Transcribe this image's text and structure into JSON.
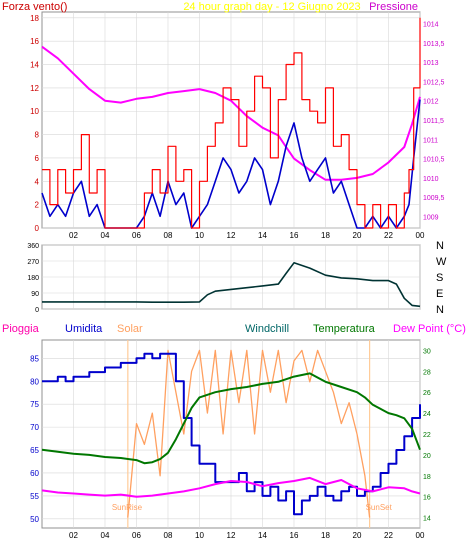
{
  "chart_data": [
    {
      "type": "line",
      "title": "24 hour graph day - 12 Giugno 2023",
      "left_label": "Forza vento()",
      "right_label": "Pressione",
      "colors": {
        "background": "#ffffff",
        "grid": "#d8d8d8",
        "title": "#ffff00",
        "wind": "#ff0000",
        "gust": "#0000cc",
        "pressure": "#ff00ff",
        "left_label": "#cc0000",
        "right_label": "#cc00cc",
        "axis_text": "#cc0000",
        "right_axis_text": "#cc00cc"
      },
      "x_ticks": [
        "02",
        "04",
        "06",
        "08",
        "10",
        "12",
        "14",
        "16",
        "18",
        "20",
        "22",
        "00"
      ],
      "xlim": [
        0,
        24
      ],
      "y_left": {
        "ylim": [
          0,
          18.5
        ],
        "ticks": [
          "0",
          "2",
          "4",
          "6",
          "8",
          "10",
          "12",
          "14",
          "16",
          "18"
        ]
      },
      "y_right": {
        "ylim": [
          1008.7,
          1014.3
        ],
        "ticks": [
          "1009",
          "1009,5",
          "1010",
          "1010,5",
          "1011",
          "1011,5",
          "1012",
          "1012,5",
          "1013",
          "1013,5",
          "1014"
        ]
      },
      "series": [
        {
          "role": "pressure",
          "axis": "right",
          "x": [
            0,
            1,
            2,
            3,
            4,
            5,
            6,
            7,
            8,
            9,
            10,
            11,
            12,
            13,
            14,
            15,
            15.5,
            16,
            17,
            18,
            19,
            20,
            21,
            22,
            23,
            23.5,
            24
          ],
          "y": [
            1013.4,
            1013.1,
            1012.7,
            1012.3,
            1012.0,
            1011.95,
            1012.05,
            1012.1,
            1012.2,
            1012.25,
            1012.3,
            1012.2,
            1012.0,
            1011.6,
            1011.3,
            1011.1,
            1010.8,
            1010.5,
            1010.2,
            1009.95,
            1009.95,
            1010.0,
            1010.1,
            1010.4,
            1010.8,
            1011.4,
            1012.1
          ]
        },
        {
          "role": "gust",
          "axis": "left",
          "x": [
            0,
            0.5,
            1,
            1.5,
            2,
            2.5,
            3,
            3.5,
            4,
            5,
            6,
            6.5,
            7,
            7.5,
            8,
            8.5,
            9,
            9.5,
            10,
            10.5,
            11,
            11.5,
            12,
            12.5,
            13,
            13.5,
            14,
            14.5,
            15,
            15.5,
            16,
            16.5,
            17,
            17.5,
            18,
            18.5,
            19,
            19.5,
            20,
            20.5,
            21,
            21.5,
            22,
            22.5,
            23,
            23.3,
            23.6,
            24
          ],
          "y": [
            3,
            1,
            2,
            1,
            3,
            4,
            1,
            2,
            0,
            0,
            0,
            1,
            3,
            1,
            4,
            2,
            3,
            0,
            1,
            2,
            4,
            6,
            5,
            3,
            4,
            6,
            5,
            2,
            4,
            7,
            9,
            6,
            4,
            5,
            6,
            3,
            4,
            2,
            0,
            0,
            1,
            0,
            1,
            0,
            1,
            2,
            6,
            11
          ]
        },
        {
          "role": "wind",
          "axis": "left",
          "x": [
            0,
            0.5,
            1,
            1.5,
            2,
            2.5,
            3,
            3.5,
            4,
            5,
            6,
            6.5,
            7,
            7.5,
            8,
            8.5,
            9,
            9.5,
            10,
            10.5,
            11,
            11.5,
            12,
            12.5,
            13,
            13.5,
            14,
            14.5,
            15,
            15.5,
            16,
            16.5,
            17,
            17.5,
            18,
            18.5,
            19,
            19.5,
            20,
            20.5,
            21,
            21.5,
            22,
            22.5,
            23,
            23.3,
            23.6,
            24
          ],
          "y": [
            5,
            2,
            5,
            3,
            5,
            8,
            3,
            5,
            0,
            0,
            0,
            3,
            5,
            3,
            7,
            4,
            5,
            0,
            4,
            7,
            9,
            12,
            11,
            7,
            10,
            13,
            12,
            6,
            11,
            14,
            15,
            11,
            10,
            9,
            12,
            7,
            8,
            5,
            2,
            0,
            2,
            0,
            2,
            0,
            3,
            5,
            12,
            18
          ]
        }
      ]
    },
    {
      "type": "line",
      "title": "",
      "colors": {
        "line": "#003333",
        "grid": "#d8d8d8",
        "axis_text": "#000000"
      },
      "xlim": [
        0,
        24
      ],
      "ylim": [
        0,
        360
      ],
      "y_ticks": [
        "0",
        "90",
        "180",
        "270",
        "360"
      ],
      "right_labels": [
        "N",
        "W",
        "S",
        "E",
        "N"
      ],
      "series": [
        {
          "role": "direction",
          "x": [
            0,
            1,
            2,
            3,
            4,
            5,
            6,
            7,
            8,
            9,
            10,
            10.5,
            11,
            12,
            13,
            14,
            15,
            15.5,
            16,
            17,
            18,
            19,
            20,
            21,
            22,
            22.5,
            23,
            23.5,
            24
          ],
          "y": [
            40,
            40,
            40,
            40,
            40,
            40,
            40,
            38,
            38,
            38,
            40,
            80,
            100,
            110,
            120,
            130,
            140,
            200,
            260,
            230,
            190,
            175,
            170,
            160,
            160,
            140,
            60,
            20,
            15
          ]
        }
      ]
    },
    {
      "type": "line",
      "title": "",
      "labels": [
        "Pioggia",
        "Umidita",
        "Solar",
        "Windchill",
        "Temperatura",
        "Dew Point (°C)"
      ],
      "sunrise_label": "SunRise",
      "sunset_label": "SunSet",
      "colors": {
        "rain": "#ff00aa",
        "humidity": "#0000cc",
        "solar": "#ffa060",
        "windchill": "#006666",
        "temperature": "#007700",
        "dewpoint": "#ff00ff",
        "sun_line": "#ffcc99",
        "grid": "#d8d8d8"
      },
      "x_ticks": [
        "02",
        "04",
        "06",
        "08",
        "10",
        "12",
        "14",
        "16",
        "18",
        "20",
        "22",
        "00"
      ],
      "xlim": [
        0,
        24
      ],
      "y_left": {
        "ylim": [
          48,
          89
        ],
        "ticks": [
          "50",
          "55",
          "60",
          "65",
          "70",
          "75",
          "80",
          "85"
        ]
      },
      "y_right": {
        "ylim": [
          13,
          31
        ],
        "ticks": [
          "14",
          "16",
          "18",
          "20",
          "22",
          "24",
          "26",
          "28",
          "30"
        ]
      },
      "sunrise_x": 5.45,
      "sunset_x": 20.8,
      "series": [
        {
          "role": "solar",
          "axis": "right",
          "x": [
            5.45,
            6,
            6.5,
            7,
            7.5,
            8,
            8.5,
            9,
            9.5,
            10,
            10.5,
            11,
            11.5,
            12,
            12.5,
            13,
            13.5,
            14,
            14.5,
            15,
            15.5,
            16,
            16.5,
            17,
            17.5,
            18,
            18.5,
            19,
            19.5,
            20,
            20.5,
            20.8
          ],
          "y": [
            14,
            23,
            21,
            24,
            18,
            30,
            26,
            22,
            28,
            30,
            24,
            30,
            22,
            30,
            25,
            30,
            22,
            30,
            26,
            30,
            25,
            29,
            30,
            27,
            30,
            28,
            26,
            23,
            25,
            22,
            18,
            14
          ]
        },
        {
          "role": "humidity",
          "axis": "left",
          "x": [
            0,
            0.5,
            1,
            1.5,
            2,
            3,
            4,
            5,
            6,
            6.5,
            7,
            7.5,
            8,
            8.5,
            9,
            9.5,
            10,
            11,
            12,
            12.5,
            13,
            13.5,
            14,
            14.5,
            15,
            15.5,
            16,
            16.5,
            17,
            17.5,
            18,
            18.5,
            19,
            19.5,
            20,
            20.5,
            21,
            21.5,
            22,
            22.5,
            23,
            23.5,
            24
          ],
          "y": [
            80,
            80,
            81,
            80,
            81,
            82,
            83,
            84,
            85,
            86,
            85,
            86,
            86,
            80,
            72,
            66,
            62,
            58,
            58,
            60,
            56,
            58,
            55,
            57,
            54,
            56,
            51,
            54,
            55,
            57,
            55,
            54,
            56,
            57,
            55,
            56,
            57,
            60,
            62,
            65,
            68,
            72,
            75
          ]
        },
        {
          "role": "temperature",
          "axis": "right",
          "x": [
            0,
            1,
            2,
            3,
            4,
            5,
            6,
            6.5,
            7,
            7.5,
            8,
            8.5,
            9,
            9.5,
            10,
            11,
            12,
            13,
            14,
            15,
            16,
            17,
            18,
            19,
            20,
            20.5,
            21,
            22,
            22.5,
            23,
            23.5,
            24
          ],
          "y": [
            20.5,
            20.3,
            20.1,
            20.0,
            19.8,
            19.7,
            19.5,
            19.2,
            19.3,
            19.6,
            20.2,
            21.5,
            23.0,
            24.5,
            25.5,
            26.0,
            26.3,
            26.5,
            26.8,
            27.0,
            27.5,
            27.8,
            27.0,
            26.5,
            26.0,
            25.5,
            24.8,
            24.0,
            23.8,
            23.5,
            22.5,
            20.5
          ]
        },
        {
          "role": "dewpoint",
          "axis": "right",
          "x": [
            0,
            1,
            2,
            3,
            4,
            5,
            6,
            7,
            8,
            9,
            10,
            11,
            12,
            13,
            14,
            15,
            16,
            17,
            18,
            19,
            20,
            21,
            22,
            23,
            23.5,
            24
          ],
          "y": [
            16.6,
            16.4,
            16.3,
            16.2,
            16.1,
            16.2,
            16.0,
            16.1,
            16.3,
            16.5,
            16.8,
            17.2,
            17.5,
            17.4,
            17.0,
            17.3,
            17.5,
            17.8,
            17.2,
            17.6,
            16.8,
            16.5,
            16.9,
            16.8,
            16.5,
            16.3
          ]
        }
      ]
    }
  ]
}
